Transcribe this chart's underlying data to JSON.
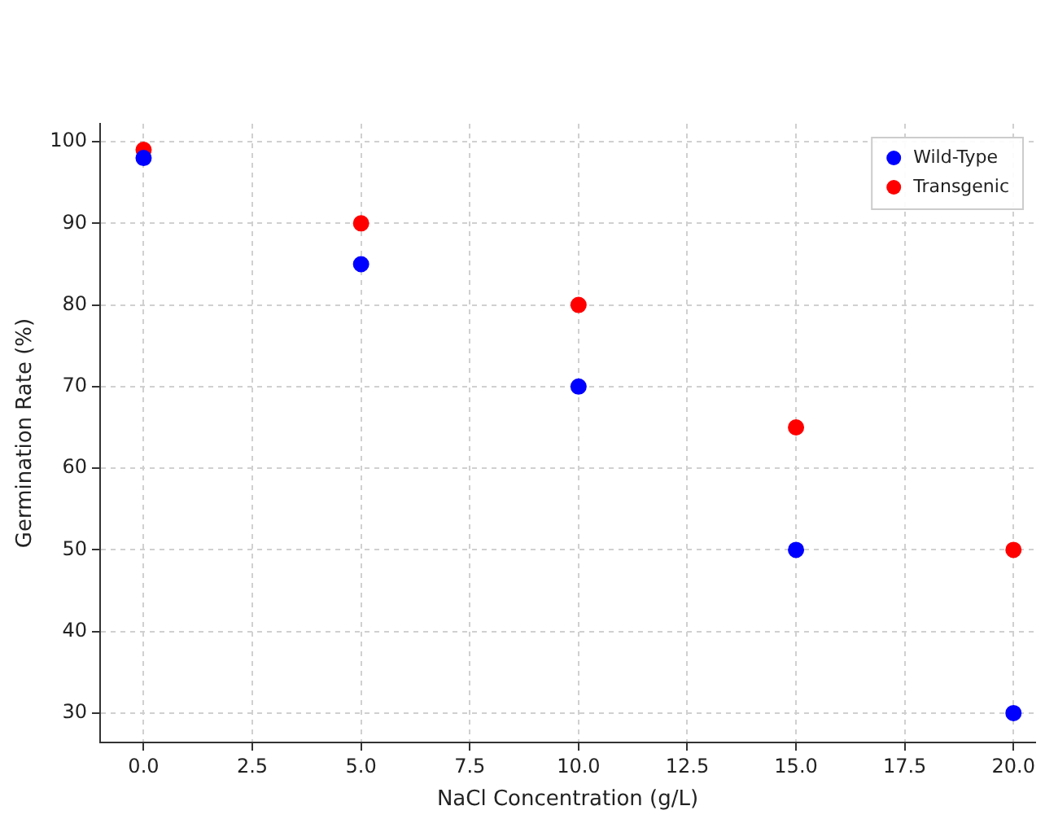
{
  "chart_data": {
    "type": "scatter",
    "xlabel": "NaCl Concentration (g/L)",
    "ylabel": "Germination Rate (%)",
    "x": [
      0,
      5,
      10,
      15,
      20
    ],
    "series": [
      {
        "name": "Wild-Type",
        "color": "#0000ff",
        "values": [
          98,
          85,
          70,
          50,
          30
        ]
      },
      {
        "name": "Transgenic",
        "color": "#ff0000",
        "values": [
          99,
          90,
          80,
          65,
          50
        ]
      }
    ],
    "xlim": [
      -1,
      20.5
    ],
    "xticks": [
      {
        "value": 0,
        "label": "0.0"
      },
      {
        "value": 2.5,
        "label": "2.5"
      },
      {
        "value": 5,
        "label": "5.0"
      },
      {
        "value": 7.5,
        "label": "7.5"
      },
      {
        "value": 10,
        "label": "10.0"
      },
      {
        "value": 12.5,
        "label": "12.5"
      },
      {
        "value": 15,
        "label": "15.0"
      },
      {
        "value": 17.5,
        "label": "17.5"
      },
      {
        "value": 20,
        "label": "20.0"
      }
    ],
    "ylim": [
      26.4,
      102.2
    ],
    "yticks": [
      30,
      40,
      50,
      60,
      70,
      80,
      90,
      100
    ],
    "grid": true,
    "legend": "top right",
    "marker": "circle"
  }
}
